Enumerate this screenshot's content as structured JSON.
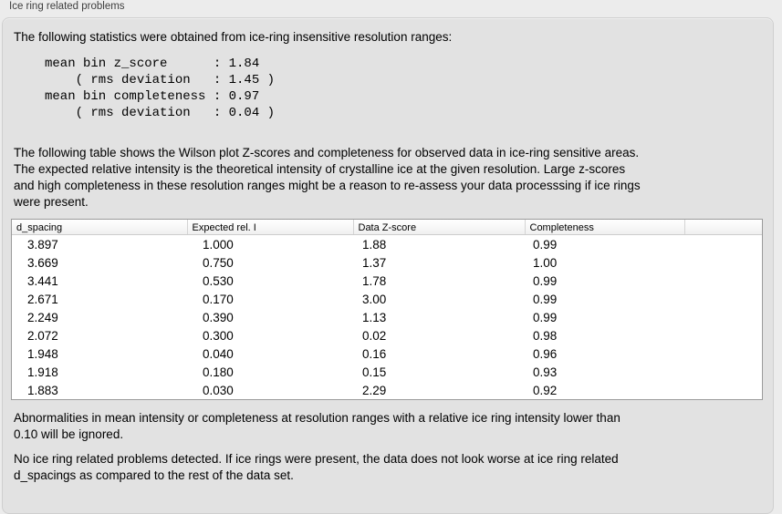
{
  "colors": {
    "window_bg": "#ececec",
    "panel_bg": "#e2e2e2",
    "panel_border": "#cfcfcf",
    "table_bg": "#ffffff",
    "table_border": "#9b9b9b",
    "header_separator": "#d4d4d4",
    "text": "#000000",
    "label_text": "#3f3f3f"
  },
  "panel": {
    "title": "Ice ring related problems"
  },
  "intro": "The following statistics were obtained from ice-ring insensitive resolution ranges:",
  "stats_block": {
    "lines": [
      "mean bin z_score      : 1.84",
      "    ( rms deviation   : 1.45 )",
      "mean bin completeness : 0.97",
      "    ( rms deviation   : 0.04 )"
    ],
    "mean_bin_z_score": 1.84,
    "z_score_rms_deviation": 1.45,
    "mean_bin_completeness": 0.97,
    "completeness_rms_deviation": 0.04
  },
  "table_description": "The following table shows the Wilson plot Z-scores and completeness for observed data in ice-ring sensitive areas.\nThe expected relative intensity is the theoretical intensity of crystalline ice at the given resolution. Large z-scores\nand high completeness in these resolution ranges might be a reason to re-assess your data processsing if ice rings\nwere present.",
  "table": {
    "columns": [
      "d_spacing",
      "Expected rel. I",
      "Data Z-score",
      "Completeness",
      ""
    ],
    "rows": [
      [
        "3.897",
        "1.000",
        "1.88",
        "0.99"
      ],
      [
        "3.669",
        "0.750",
        "1.37",
        "1.00"
      ],
      [
        "3.441",
        "0.530",
        "1.78",
        "0.99"
      ],
      [
        "2.671",
        "0.170",
        "3.00",
        "0.99"
      ],
      [
        "2.249",
        "0.390",
        "1.13",
        "0.99"
      ],
      [
        "2.072",
        "0.300",
        "0.02",
        "0.98"
      ],
      [
        "1.948",
        "0.040",
        "0.16",
        "0.96"
      ],
      [
        "1.918",
        "0.180",
        "0.15",
        "0.93"
      ],
      [
        "1.883",
        "0.030",
        "2.29",
        "0.92"
      ]
    ]
  },
  "ignore_note": "Abnormalities in mean intensity or completeness at resolution ranges with a relative ice ring intensity lower than\n0.10 will be ignored.",
  "conclusion": "No ice ring related problems detected. If ice rings were present, the data does not look worse at ice ring related\nd_spacings as compared to the rest of the data set."
}
